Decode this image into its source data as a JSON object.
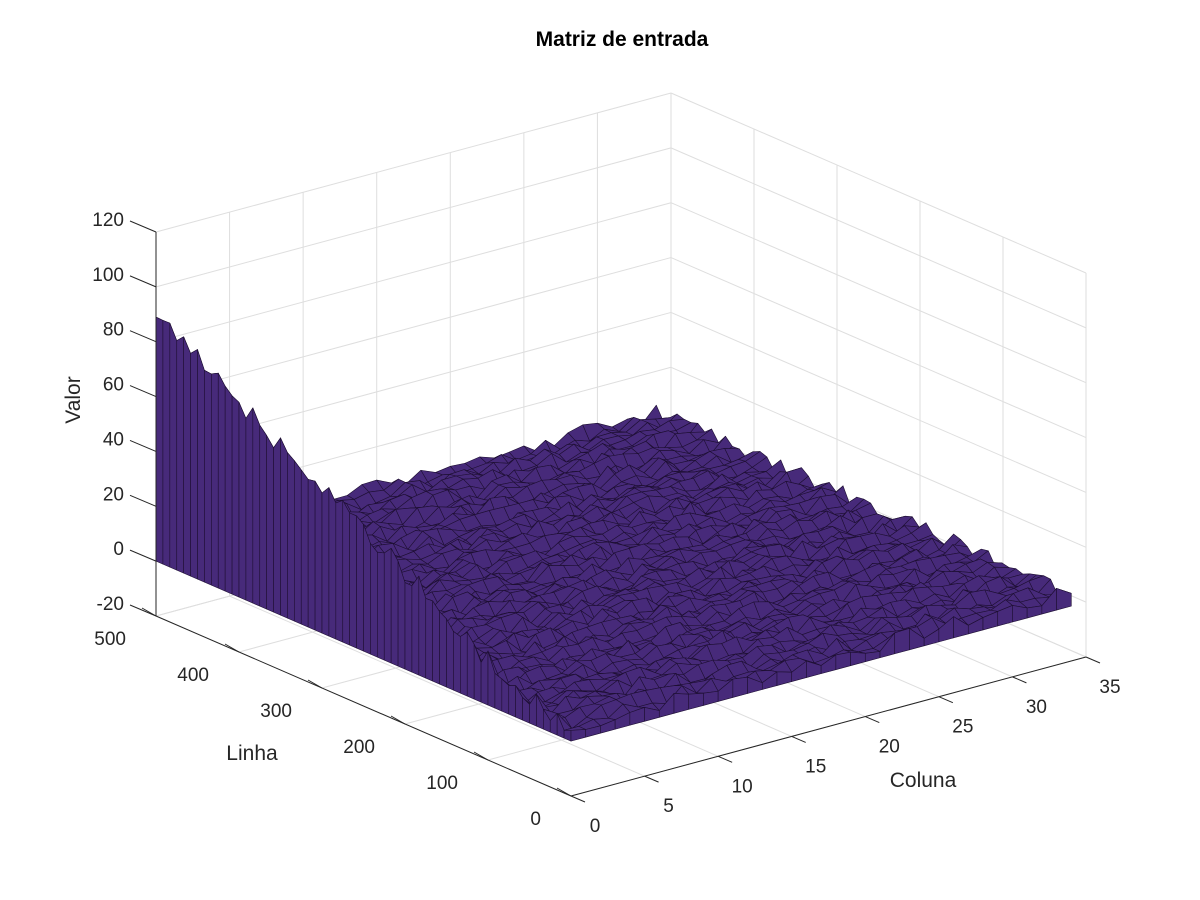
{
  "chart_data": {
    "type": "surface",
    "title": "Matriz de entrada",
    "xlabel": "Coluna",
    "ylabel": "Linha",
    "zlabel": "Valor",
    "xlim": [
      0,
      35
    ],
    "ylim": [
      0,
      500
    ],
    "zlim": [
      -20,
      120
    ],
    "xticks": [
      "0",
      "5",
      "10",
      "15",
      "20",
      "25",
      "30",
      "35"
    ],
    "yticks": [
      "0",
      "100",
      "200",
      "300",
      "400",
      "500"
    ],
    "zticks": [
      "-20",
      "0",
      "20",
      "40",
      "60",
      "80",
      "100",
      "120"
    ],
    "grid": true,
    "colormap_color": "#472a7a",
    "edge_color": "#1e0f33",
    "highlight_color": "#f5e61e",
    "data_summary": {
      "columns": 34,
      "rows": 500,
      "first_column_profile_rows": [
        0,
        25,
        50,
        75,
        100,
        125,
        150,
        175,
        200,
        225,
        250,
        275,
        300,
        325,
        350,
        375,
        400,
        425,
        450,
        475,
        500
      ],
      "first_column_profile_values": [
        0,
        3,
        5,
        8,
        12,
        17,
        22,
        27,
        31,
        36,
        40,
        45,
        50,
        54,
        58,
        63,
        67,
        72,
        77,
        82,
        85
      ]
    }
  }
}
